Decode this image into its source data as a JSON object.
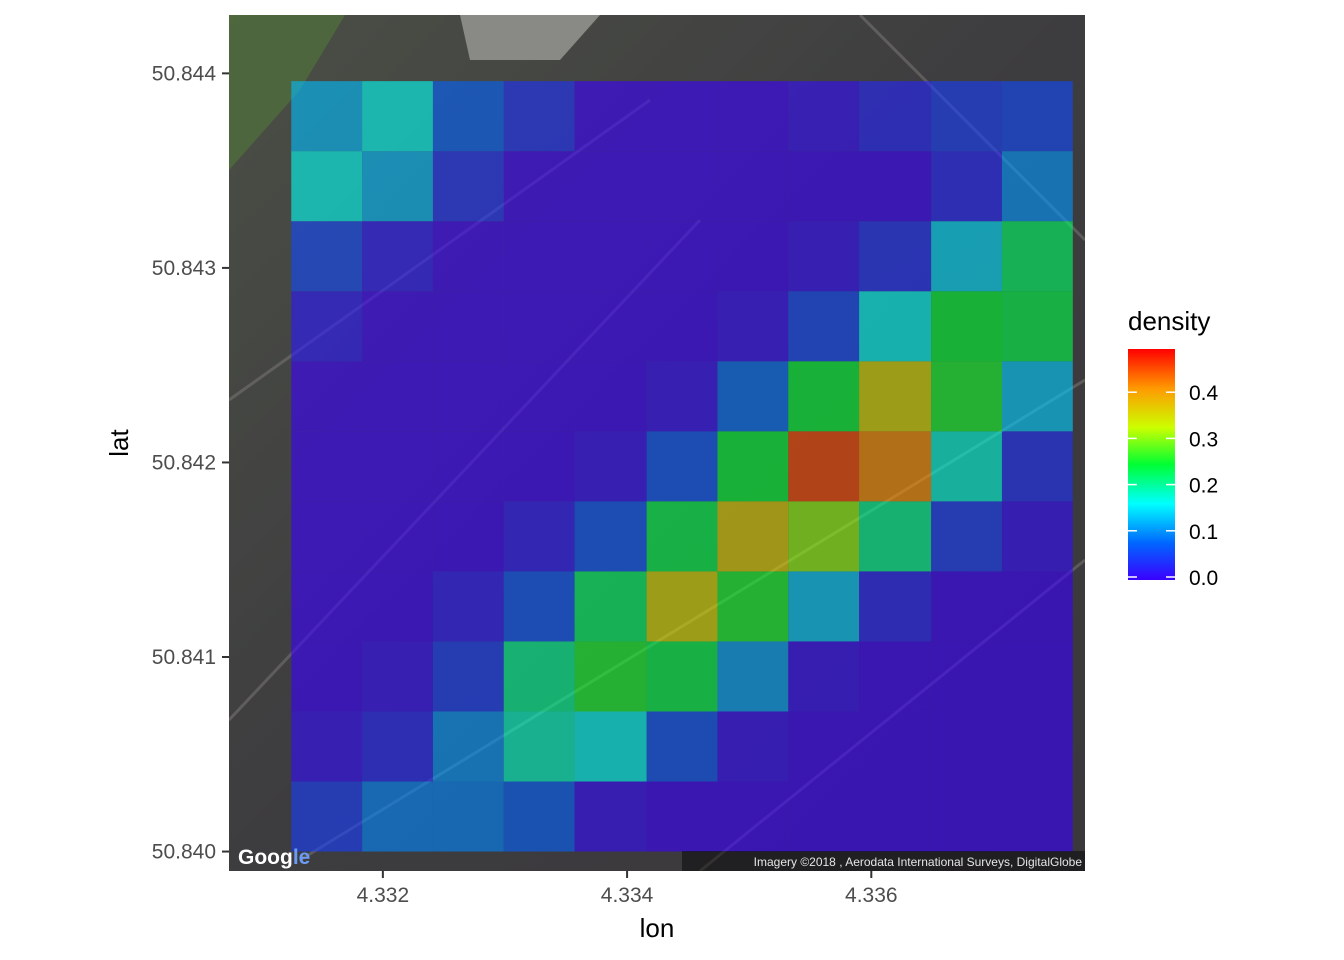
{
  "chart_data": {
    "type": "heatmap",
    "title": "",
    "xlabel": "lon",
    "ylabel": "lat",
    "xlim": [
      4.33074,
      4.33775
    ],
    "ylim": [
      50.8399,
      50.8443
    ],
    "x_ticks": [
      4.332,
      4.334,
      4.336
    ],
    "x_tick_labels": [
      "4.332",
      "4.334",
      "4.336"
    ],
    "y_ticks": [
      50.84,
      50.841,
      50.842,
      50.843,
      50.844
    ],
    "y_tick_labels": [
      "50.840",
      "50.841",
      "50.842",
      "50.843",
      "50.844"
    ],
    "grid": false,
    "background": "satellite-imagery",
    "cell_opacity": 0.6,
    "bins_x": [
      4.33125,
      4.33183,
      4.33241,
      4.33299,
      4.33357,
      4.33416,
      4.33474,
      4.33532,
      4.3359,
      4.33649,
      4.33707,
      4.33765
    ],
    "bins_y": [
      50.84,
      50.84036,
      50.84072,
      50.84108,
      50.84144,
      50.8418,
      50.84216,
      50.84252,
      50.84288,
      50.84324,
      50.8436,
      50.84396
    ],
    "density": [
      [
        0.05,
        0.1,
        0.1,
        0.08,
        0.01,
        0.0,
        0.0,
        0.0,
        0.0,
        0.0,
        0.0
      ],
      [
        0.01,
        0.03,
        0.11,
        0.19,
        0.17,
        0.07,
        0.01,
        0.0,
        0.0,
        0.0,
        0.0
      ],
      [
        0.0,
        0.01,
        0.05,
        0.21,
        0.26,
        0.24,
        0.12,
        0.01,
        0.0,
        0.0,
        0.0
      ],
      [
        0.0,
        0.0,
        0.02,
        0.07,
        0.23,
        0.36,
        0.26,
        0.14,
        0.03,
        0.0,
        0.0
      ],
      [
        0.0,
        0.0,
        0.0,
        0.02,
        0.07,
        0.24,
        0.37,
        0.31,
        0.21,
        0.05,
        0.01
      ],
      [
        0.0,
        0.0,
        0.0,
        0.0,
        0.01,
        0.07,
        0.25,
        0.46,
        0.42,
        0.18,
        0.04
      ],
      [
        0.0,
        0.0,
        0.0,
        0.0,
        0.0,
        0.01,
        0.09,
        0.25,
        0.36,
        0.26,
        0.14
      ],
      [
        0.02,
        0.0,
        0.0,
        0.0,
        0.0,
        0.0,
        0.01,
        0.06,
        0.17,
        0.25,
        0.24
      ],
      [
        0.06,
        0.02,
        0.0,
        0.0,
        0.0,
        0.0,
        0.0,
        0.01,
        0.04,
        0.15,
        0.23
      ],
      [
        0.17,
        0.13,
        0.04,
        0.0,
        0.0,
        0.0,
        0.0,
        0.0,
        0.0,
        0.03,
        0.11
      ],
      [
        0.13,
        0.17,
        0.08,
        0.04,
        0.0,
        0.0,
        0.0,
        0.01,
        0.03,
        0.05,
        0.06
      ]
    ],
    "legend": {
      "title": "density",
      "position": "right",
      "breaks": [
        0.0,
        0.1,
        0.2,
        0.3,
        0.4
      ],
      "labels": [
        "0.0",
        "0.1",
        "0.2",
        "0.3",
        "0.4"
      ],
      "limits": [
        0.0,
        0.5
      ],
      "colors": [
        "#3a00ff",
        "#0066ff",
        "#00ffff",
        "#00ff33",
        "#ccff00",
        "#ff9900",
        "#ff0000"
      ]
    },
    "attribution": "Imagery ©2018 , Aerodata International Surveys, DigitalGlobe",
    "logo": "Google"
  }
}
